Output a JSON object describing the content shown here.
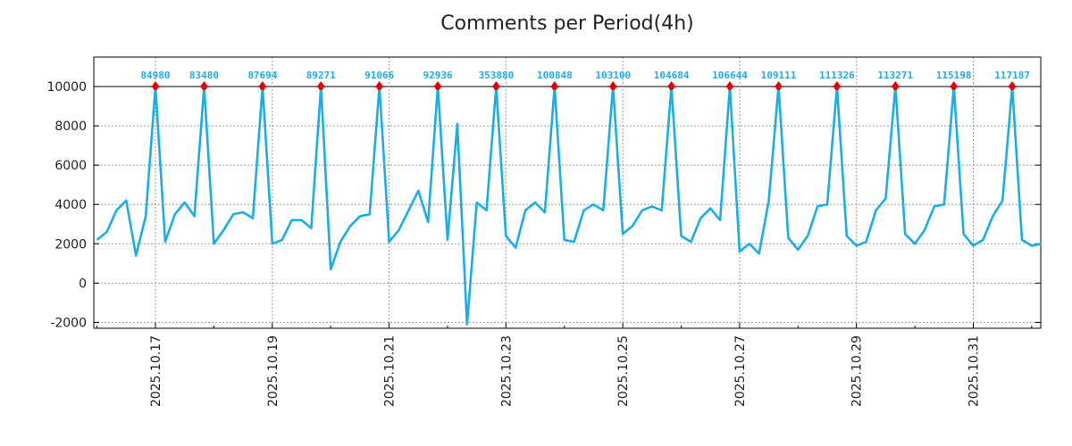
{
  "chart_data": {
    "type": "line",
    "title": "Comments per Period(4h)",
    "xlabel": "",
    "ylabel": "",
    "ylim": [
      -2300,
      11500
    ],
    "yticks": [
      -2000,
      0,
      2000,
      4000,
      6000,
      8000,
      10000
    ],
    "grid": true,
    "reference_line": 10000,
    "x_range_days": [
      -0.055,
      16.155
    ],
    "xticks": [
      {
        "day": 1,
        "label": "2025.10.17"
      },
      {
        "day": 3,
        "label": "2025.10.19"
      },
      {
        "day": 5,
        "label": "2025.10.21"
      },
      {
        "day": 7,
        "label": "2025.10.23"
      },
      {
        "day": 9,
        "label": "2025.10.25"
      },
      {
        "day": 11,
        "label": "2025.10.27"
      },
      {
        "day": 13,
        "label": "2025.10.29"
      },
      {
        "day": 15,
        "label": "2025.10.31"
      }
    ],
    "period_days": 0.16667,
    "series": [
      {
        "name": "Comments",
        "color": "#1aaee8",
        "values": [
          2200,
          2600,
          3700,
          4200,
          1400,
          3400,
          10000,
          2100,
          3500,
          4100,
          3400,
          10000,
          2000,
          2700,
          3500,
          3600,
          3300,
          10000,
          2000,
          2200,
          3200,
          3200,
          2800,
          10000,
          700,
          2100,
          2900,
          3400,
          3500,
          10000,
          2100,
          2700,
          3700,
          4700,
          3100,
          10000,
          2200,
          8100,
          -2100,
          4100,
          3700,
          10000,
          2400,
          1800,
          3700,
          4100,
          3600,
          10000,
          2200,
          2100,
          3700,
          4000,
          3700,
          10000,
          2500,
          2900,
          3700,
          3900,
          3700,
          10000,
          2400,
          2100,
          3300,
          3800,
          3200,
          10000,
          1600,
          2000,
          1500,
          4200,
          10000,
          2300,
          1700,
          2400,
          3900,
          4000,
          10000,
          2400,
          1900,
          2100,
          3700,
          4300,
          10000,
          2500,
          2000,
          2700,
          3900,
          4000,
          10000,
          2500,
          1900,
          2200,
          3400,
          4200,
          10000,
          2200,
          1900,
          2000
        ]
      }
    ],
    "peaks": [
      {
        "index": 6,
        "label": "84980"
      },
      {
        "index": 11,
        "label": "83480"
      },
      {
        "index": 17,
        "label": "87694"
      },
      {
        "index": 23,
        "label": "89271"
      },
      {
        "index": 29,
        "label": "91066"
      },
      {
        "index": 35,
        "label": "92936"
      },
      {
        "index": 41,
        "label": "353880"
      },
      {
        "index": 47,
        "label": "100848"
      },
      {
        "index": 53,
        "label": "103100"
      },
      {
        "index": 59,
        "label": "104684"
      },
      {
        "index": 65,
        "label": "106644"
      },
      {
        "index": 70,
        "label": "109111"
      },
      {
        "index": 76,
        "label": "111326"
      },
      {
        "index": 82,
        "label": "113271"
      },
      {
        "index": 88,
        "label": "115198"
      },
      {
        "index": 94,
        "label": "117187"
      }
    ],
    "peak_marker_color": "#e00000",
    "peak_label_color": "#1aaee8"
  }
}
